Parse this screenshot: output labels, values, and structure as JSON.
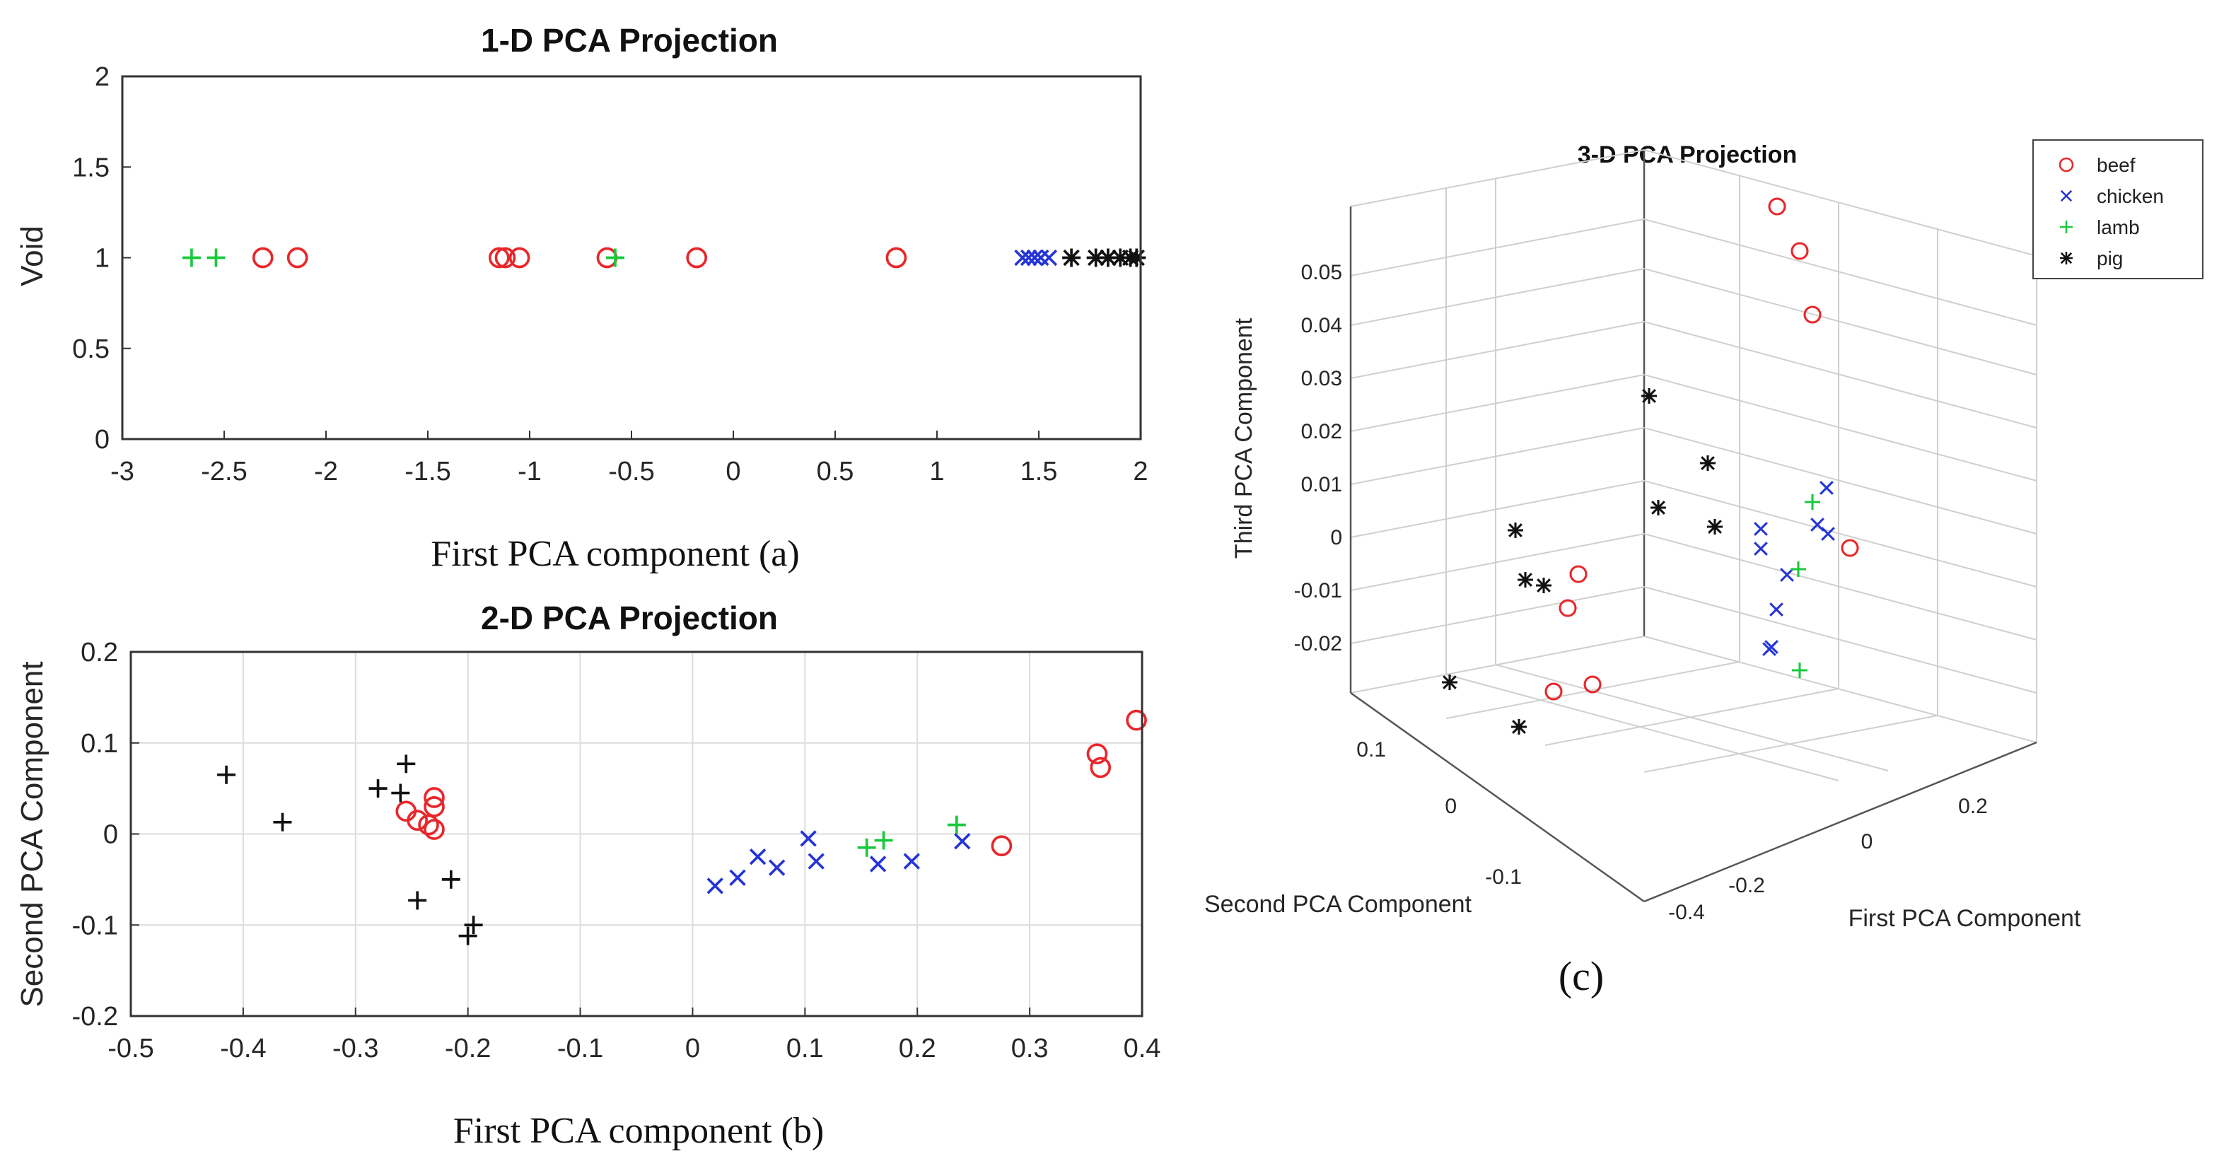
{
  "chart_data": [
    {
      "id": "a",
      "type": "scatter",
      "title": "1-D PCA Projection",
      "ylabel": "Void",
      "xlabel_caption": "First PCA component  (a)",
      "xlim": [
        -3,
        2
      ],
      "ylim": [
        0,
        2
      ],
      "xticks": [
        "-3",
        "-2.5",
        "-2",
        "-1.5",
        "-1",
        "-0.5",
        "0",
        "0.5",
        "1",
        "1.5",
        "2"
      ],
      "yticks": [
        "0",
        "0.5",
        "1",
        "1.5",
        "2"
      ],
      "grid": false,
      "series": [
        {
          "marker": "o",
          "color": "#e8272b",
          "points": [
            [
              -2.31,
              1
            ],
            [
              -2.14,
              1
            ],
            [
              -1.15,
              1
            ],
            [
              -1.12,
              1
            ],
            [
              -1.05,
              1
            ],
            [
              -0.62,
              1
            ],
            [
              -0.18,
              1
            ],
            [
              0.8,
              1
            ]
          ]
        },
        {
          "marker": "+",
          "color": "#18c93c",
          "points": [
            [
              -2.66,
              1
            ],
            [
              -2.54,
              1
            ],
            [
              -0.58,
              1
            ]
          ]
        },
        {
          "marker": "x",
          "color": "#2434d6",
          "points": [
            [
              1.42,
              1
            ],
            [
              1.45,
              1
            ],
            [
              1.48,
              1
            ],
            [
              1.51,
              1
            ],
            [
              1.55,
              1
            ]
          ]
        },
        {
          "marker": "*",
          "color": "#111111",
          "points": [
            [
              1.66,
              1
            ],
            [
              1.78,
              1
            ],
            [
              1.84,
              1
            ],
            [
              1.9,
              1
            ],
            [
              1.95,
              1
            ],
            [
              1.98,
              1
            ]
          ]
        }
      ]
    },
    {
      "id": "b",
      "type": "scatter",
      "title": "2-D PCA Projection",
      "ylabel": "Second PCA Component",
      "xlabel_caption": "First PCA component  (b)",
      "xlim": [
        -0.5,
        0.4
      ],
      "ylim": [
        -0.2,
        0.2
      ],
      "xticks": [
        "-0.5",
        "-0.4",
        "-0.3",
        "-0.2",
        "-0.1",
        "0",
        "0.1",
        "0.2",
        "0.3",
        "0.4"
      ],
      "yticks": [
        "-0.2",
        "-0.1",
        "0",
        "0.1",
        "0.2"
      ],
      "grid": true,
      "series": [
        {
          "marker": "o",
          "color": "#e8272b",
          "points": [
            [
              -0.255,
              0.025
            ],
            [
              -0.245,
              0.015
            ],
            [
              -0.235,
              0.01
            ],
            [
              -0.23,
              0.04
            ],
            [
              -0.23,
              0.03
            ],
            [
              -0.23,
              0.005
            ],
            [
              0.275,
              -0.013
            ],
            [
              0.36,
              0.088
            ],
            [
              0.363,
              0.073
            ],
            [
              0.395,
              0.125
            ]
          ]
        },
        {
          "marker": "+",
          "color": "#18c93c",
          "points": [
            [
              0.155,
              -0.015
            ],
            [
              0.17,
              -0.007
            ],
            [
              0.235,
              0.01
            ]
          ]
        },
        {
          "marker": "x",
          "color": "#2434d6",
          "points": [
            [
              0.02,
              -0.057
            ],
            [
              0.04,
              -0.048
            ],
            [
              0.058,
              -0.025
            ],
            [
              0.075,
              -0.037
            ],
            [
              0.103,
              -0.005
            ],
            [
              0.11,
              -0.03
            ],
            [
              0.165,
              -0.033
            ],
            [
              0.195,
              -0.03
            ],
            [
              0.24,
              -0.008
            ]
          ]
        },
        {
          "marker": "+",
          "color": "#111111",
          "points": [
            [
              -0.415,
              0.065
            ],
            [
              -0.365,
              0.013
            ],
            [
              -0.28,
              0.05
            ],
            [
              -0.26,
              0.045
            ],
            [
              -0.255,
              0.077
            ],
            [
              -0.245,
              -0.073
            ],
            [
              -0.215,
              -0.05
            ],
            [
              -0.2,
              -0.112
            ],
            [
              -0.195,
              -0.1
            ]
          ]
        }
      ]
    },
    {
      "id": "c",
      "type": "scatter",
      "title": "3-D PCA Projection",
      "xlabel": "First PCA Component",
      "ylabel": "Second PCA Component",
      "zlabel": "Third PCA Component",
      "caption": "(c)",
      "xticks": [
        "-0.4",
        "-0.2",
        "0",
        "0.2"
      ],
      "yticks": [
        "-0.1",
        "0",
        "0.1"
      ],
      "zticks": [
        "-0.02",
        "-0.01",
        "0",
        "0.01",
        "0.02",
        "0.03",
        "0.04",
        "0.05"
      ],
      "grid": true,
      "legend_position": "top-right",
      "legend": [
        {
          "label": "beef",
          "marker": "o",
          "color": "#e8272b"
        },
        {
          "label": "chicken",
          "marker": "x",
          "color": "#2434d6"
        },
        {
          "label": "lamb",
          "marker": "+",
          "color": "#18c93c"
        },
        {
          "label": "pig",
          "marker": "*",
          "color": "#111111"
        }
      ]
    }
  ]
}
